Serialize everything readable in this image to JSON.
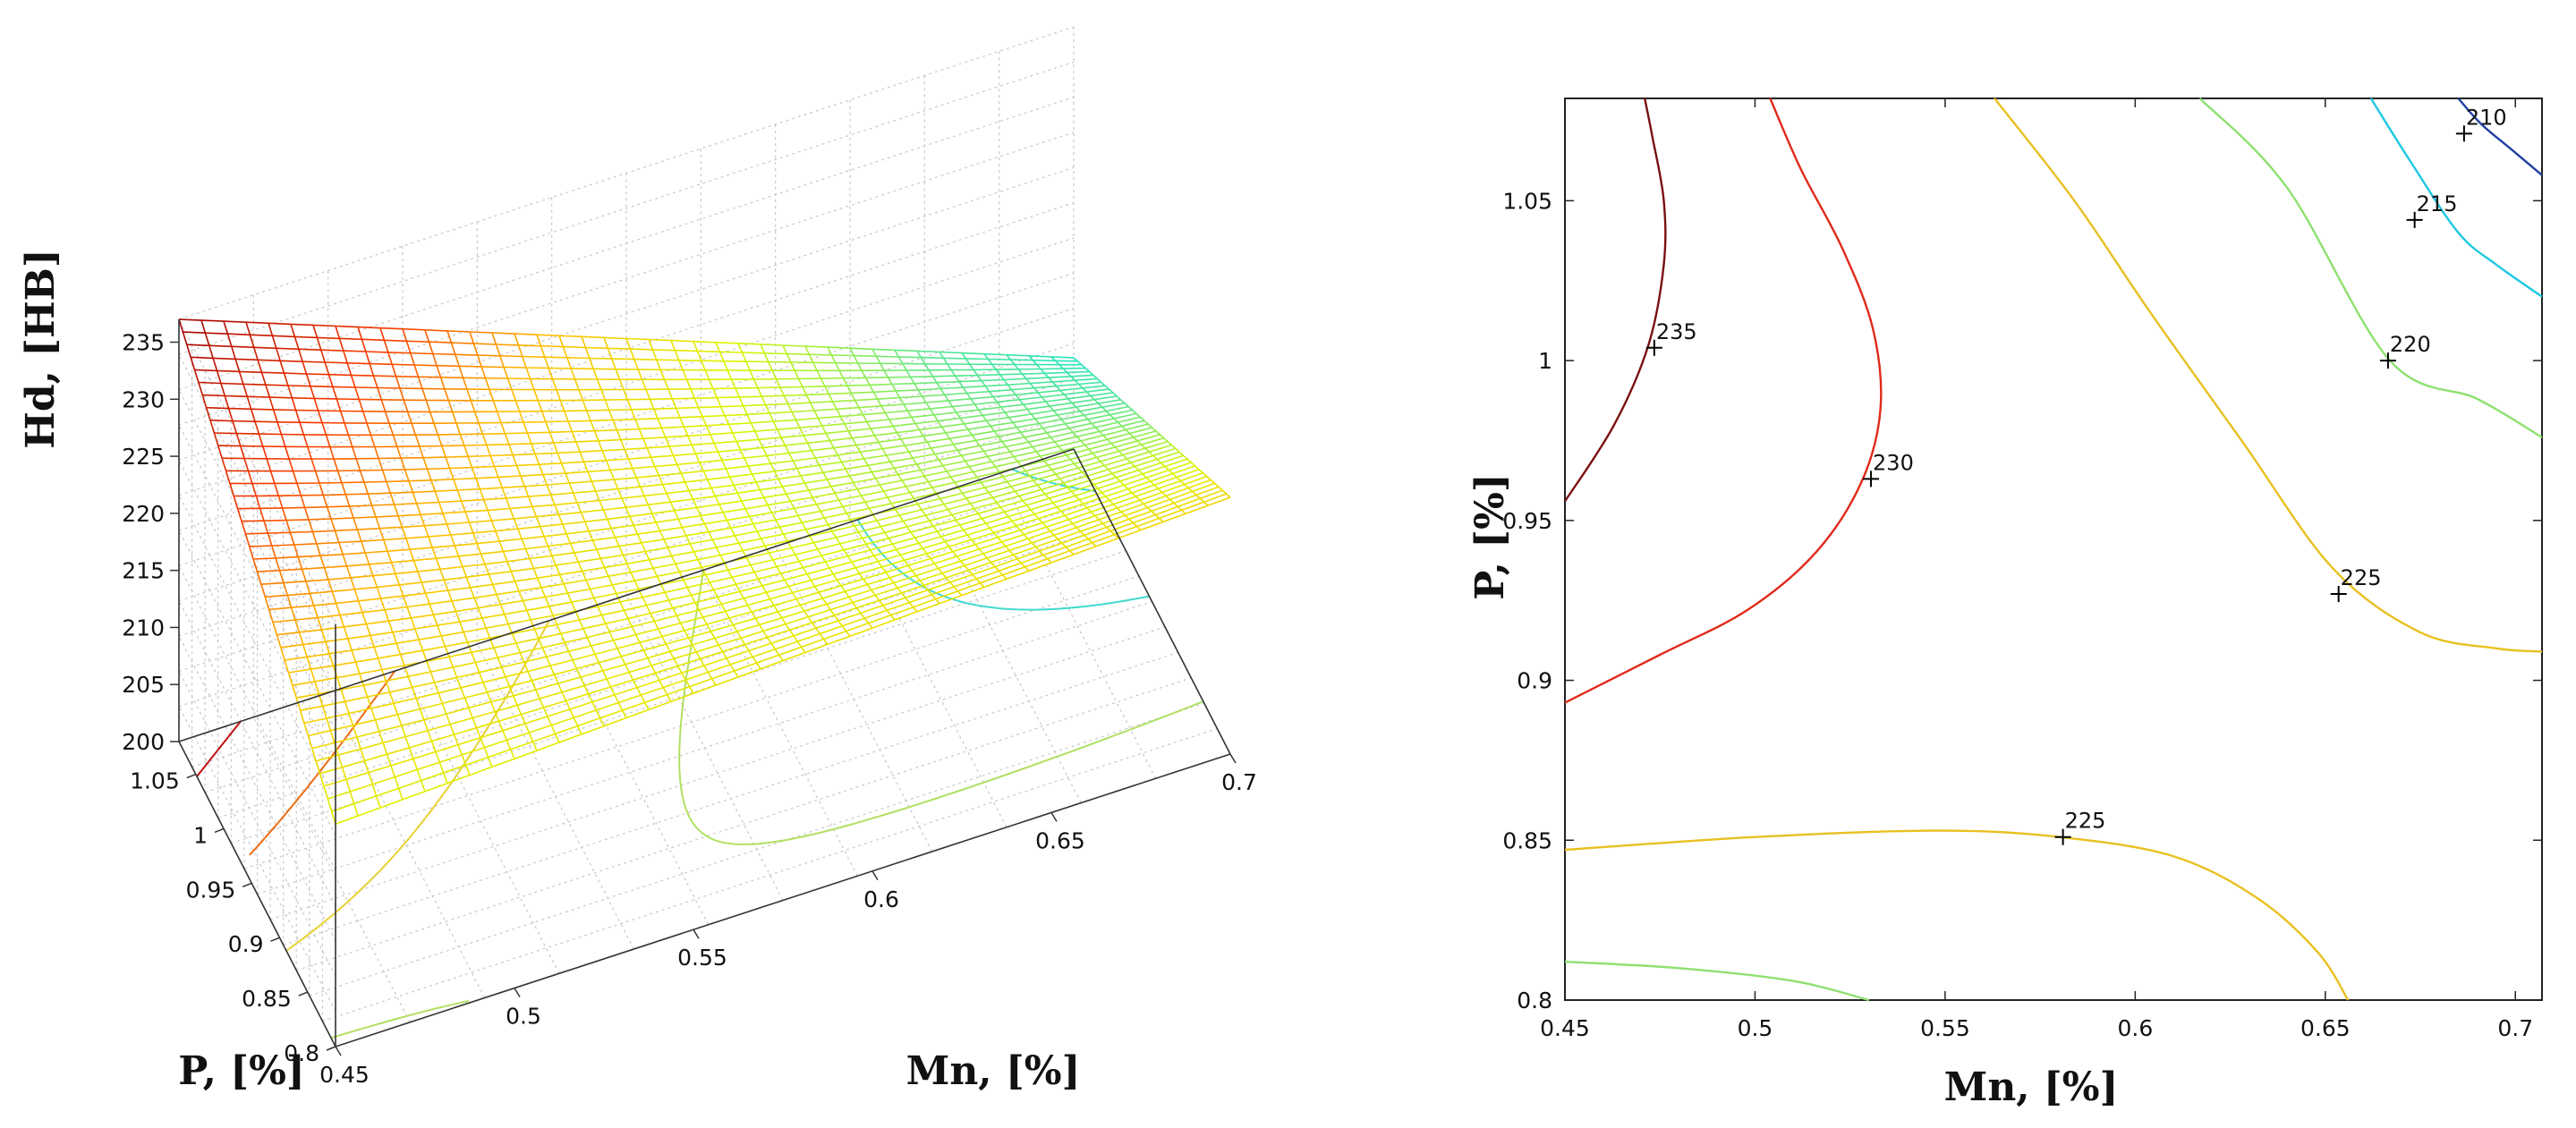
{
  "chart_data": [
    {
      "type": "surface3d",
      "title": "",
      "zlabel": "Hd, [HB]",
      "xlabel": "Mn, [%]",
      "ylabel": "P, [%]",
      "zlim": [
        200,
        237
      ],
      "xlim": [
        0.45,
        0.7
      ],
      "ylim": [
        0.8,
        1.08
      ],
      "z_ticks": [
        {
          "v": 200,
          "t": "200"
        },
        {
          "v": 205,
          "t": "205"
        },
        {
          "v": 210,
          "t": "210"
        },
        {
          "v": 215,
          "t": "215"
        },
        {
          "v": 220,
          "t": "220"
        },
        {
          "v": 225,
          "t": "225"
        },
        {
          "v": 230,
          "t": "230"
        },
        {
          "v": 235,
          "t": "235"
        }
      ],
      "x_ticks": [
        {
          "v": 0.45,
          "t": "0.45"
        },
        {
          "v": 0.5,
          "t": "0.5"
        },
        {
          "v": 0.55,
          "t": "0.55"
        },
        {
          "v": 0.6,
          "t": "0.6"
        },
        {
          "v": 0.65,
          "t": "0.65"
        },
        {
          "v": 0.7,
          "t": "0.7"
        }
      ],
      "y_ticks": [
        {
          "v": 0.8,
          "t": "0.8"
        },
        {
          "v": 0.85,
          "t": "0.85"
        },
        {
          "v": 0.9,
          "t": "0.9"
        },
        {
          "v": 0.95,
          "t": "0.95"
        },
        {
          "v": 1.0,
          "t": "1"
        },
        {
          "v": 1.05,
          "t": "1.05"
        }
      ],
      "surface_corners": [
        {
          "Mn": 0.45,
          "P": 1.08,
          "Hd": 237.0
        },
        {
          "Mn": 0.7,
          "P": 1.08,
          "Hd": 208.0
        },
        {
          "Mn": 0.45,
          "P": 0.8,
          "Hd": 219.5
        },
        {
          "Mn": 0.7,
          "P": 0.8,
          "Hd": 222.5
        }
      ],
      "surface_twist": -34,
      "surface_grid": 40,
      "colormap": "jet (cyan-green-yellow-red)",
      "floor_contour_levels": [
        210,
        215,
        220,
        225,
        230,
        235
      ]
    },
    {
      "type": "contour",
      "title": "",
      "xlabel": "Mn, [%]",
      "ylabel": "P, [%]",
      "xlim": [
        0.45,
        0.707
      ],
      "ylim": [
        0.8,
        1.082
      ],
      "x_ticks": [
        {
          "v": 0.45,
          "t": "0.45"
        },
        {
          "v": 0.5,
          "t": "0.5"
        },
        {
          "v": 0.55,
          "t": "0.55"
        },
        {
          "v": 0.6,
          "t": "0.6"
        },
        {
          "v": 0.65,
          "t": "0.65"
        },
        {
          "v": 0.7,
          "t": "0.7"
        }
      ],
      "y_ticks": [
        {
          "v": 0.8,
          "t": "0.8"
        },
        {
          "v": 0.85,
          "t": "0.85"
        },
        {
          "v": 0.9,
          "t": "0.9"
        },
        {
          "v": 0.95,
          "t": "0.95"
        },
        {
          "v": 1.0,
          "t": "1"
        },
        {
          "v": 1.05,
          "t": "1.05"
        }
      ],
      "contours": [
        {
          "level": 235,
          "color": "#7a1010",
          "points": [
            [
              0.45,
              0.956
            ],
            [
              0.463,
              0.98
            ],
            [
              0.472,
              1.005
            ],
            [
              0.476,
              1.03
            ],
            [
              0.476,
              1.05
            ],
            [
              0.473,
              1.07
            ],
            [
              0.471,
              1.082
            ]
          ]
        },
        {
          "level": 230,
          "color": "#e02a1a",
          "points": [
            [
              0.45,
              0.893
            ],
            [
              0.475,
              0.908
            ],
            [
              0.498,
              0.922
            ],
            [
              0.516,
              0.94
            ],
            [
              0.528,
              0.962
            ],
            [
              0.533,
              0.985
            ],
            [
              0.531,
              1.01
            ],
            [
              0.523,
              1.035
            ],
            [
              0.512,
              1.06
            ],
            [
              0.504,
              1.082
            ]
          ]
        },
        {
          "level": 225,
          "color": "#e8c020",
          "points": [
            [
              0.563,
              1.082
            ],
            [
              0.584,
              1.05
            ],
            [
              0.604,
              1.015
            ],
            [
              0.628,
              0.975
            ],
            [
              0.652,
              0.935
            ],
            [
              0.675,
              0.915
            ],
            [
              0.695,
              0.91
            ],
            [
              0.707,
              0.909
            ]
          ]
        },
        {
          "level": 225,
          "color": "#e8c020",
          "points": [
            [
              0.45,
              0.847
            ],
            [
              0.5,
              0.851
            ],
            [
              0.548,
              0.853
            ],
            [
              0.58,
              0.851
            ],
            [
              0.61,
              0.845
            ],
            [
              0.632,
              0.832
            ],
            [
              0.648,
              0.815
            ],
            [
              0.656,
              0.8
            ]
          ]
        },
        {
          "level": 220,
          "color": "#8ee070",
          "points": [
            [
              0.617,
              1.082
            ],
            [
              0.64,
              1.054
            ],
            [
              0.667,
              1.0
            ],
            [
              0.69,
              0.988
            ],
            [
              0.707,
              0.976
            ]
          ]
        },
        {
          "level": 220,
          "color": "#8ee070",
          "points": [
            [
              0.45,
              0.812
            ],
            [
              0.48,
              0.81
            ],
            [
              0.51,
              0.806
            ],
            [
              0.53,
              0.8
            ]
          ]
        },
        {
          "level": 215,
          "color": "#1ec8e0",
          "points": [
            [
              0.662,
              1.082
            ],
            [
              0.672,
              1.063
            ],
            [
              0.685,
              1.04
            ],
            [
              0.695,
              1.03
            ],
            [
              0.707,
              1.02
            ]
          ]
        },
        {
          "level": 210,
          "color": "#2040a0",
          "points": [
            [
              0.685,
              1.082
            ],
            [
              0.691,
              1.074
            ],
            [
              0.699,
              1.066
            ],
            [
              0.707,
              1.058
            ]
          ]
        }
      ],
      "contour_labels": [
        {
          "text": "235",
          "x": 0.4735,
          "y": 1.004
        },
        {
          "text": "230",
          "x": 0.5305,
          "y": 0.963
        },
        {
          "text": "225",
          "x": 0.6535,
          "y": 0.927
        },
        {
          "text": "225",
          "x": 0.581,
          "y": 0.851
        },
        {
          "text": "220",
          "x": 0.6665,
          "y": 1.0
        },
        {
          "text": "215",
          "x": 0.6735,
          "y": 1.044
        },
        {
          "text": "210",
          "x": 0.6865,
          "y": 1.071
        }
      ]
    }
  ]
}
